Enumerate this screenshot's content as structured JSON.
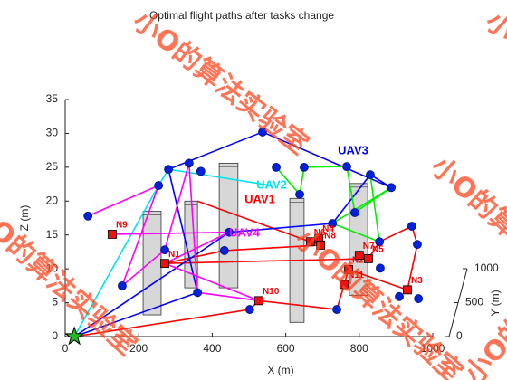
{
  "chart_data": {
    "type": "line3d",
    "title": "Optimal flight paths after tasks change",
    "xlabel": "X (m)",
    "ylabel": "Y (m)",
    "zlabel": "Z (m)",
    "xlim": [
      0,
      1000
    ],
    "ylim": [
      0,
      1000
    ],
    "zlim": [
      0,
      35
    ],
    "xticks": [
      0,
      200,
      400,
      600,
      800,
      1000
    ],
    "yticks": [
      0,
      500,
      1000
    ],
    "zticks": [
      0,
      5,
      10,
      15,
      20,
      25,
      30,
      35
    ],
    "watermark": "小O的算法实验室",
    "base": {
      "x": 25,
      "z": 0
    },
    "buildings": [
      {
        "x": [
          212,
          261
        ],
        "z": [
          3.2,
          18.5
        ]
      },
      {
        "x": [
          325,
          360
        ],
        "z": [
          7.2,
          20
        ]
      },
      {
        "x": [
          419,
          470
        ],
        "z": [
          7.2,
          25.6
        ]
      },
      {
        "x": [
          611,
          650
        ],
        "z": [
          2.1,
          20.4
        ]
      },
      {
        "x": [
          773,
          823
        ],
        "z": [
          6.1,
          22.6
        ]
      }
    ],
    "nodes": {
      "x": [
        62,
        155,
        281,
        254,
        337,
        369,
        537,
        574,
        650,
        766,
        887,
        788,
        727,
        638,
        855,
        943,
        958,
        857,
        909,
        961,
        739,
        502,
        360,
        271,
        433,
        446,
        830
      ],
      "z": [
        17.8,
        7.5,
        24.7,
        22.3,
        25.6,
        24.4,
        30.2,
        25.0,
        25.0,
        25.1,
        22.0,
        18.3,
        16.7,
        21.0,
        14.0,
        16.3,
        13.6,
        10.1,
        5.9,
        5.6,
        4.0,
        4.0,
        6.5,
        12.8,
        12.7,
        15.4,
        23.9
      ]
    },
    "targets": {
      "names": [
        "N1",
        "N2",
        "N3",
        "N4",
        "N5",
        "N6",
        "N7",
        "N8",
        "N9",
        "N10",
        "N11"
      ],
      "x": [
        271,
        771,
        931,
        690,
        825,
        667,
        800,
        695,
        128,
        527,
        759
      ],
      "z": [
        10.8,
        9.9,
        6.9,
        14.5,
        11.5,
        14.0,
        12.0,
        13.5,
        15.1,
        5.3,
        7.7
      ]
    },
    "series": [
      {
        "name": "UAV1",
        "color": "#ff0000",
        "x": [
          25,
          502,
          527,
          739,
          759,
          771,
          931,
          958,
          943,
          855,
          825,
          271,
          433,
          695,
          667,
          360
        ],
        "z": [
          0,
          4,
          5.3,
          4,
          7.7,
          9.9,
          6.9,
          13.6,
          16.3,
          14,
          11.5,
          10.8,
          12.7,
          13.5,
          14,
          20
        ]
      },
      {
        "name": "UAV2",
        "color": "#00e5ee",
        "x": [
          25,
          254,
          281,
          561
        ],
        "z": [
          0,
          22.3,
          24.7,
          22.3
        ]
      },
      {
        "name": "UAV3",
        "color": "#0000ff",
        "x": [
          25,
          360,
          281,
          537,
          887,
          830,
          727,
          446,
          25
        ],
        "z": [
          0,
          6.5,
          24.7,
          30.2,
          22,
          23.9,
          16.7,
          15.4,
          0
        ]
      },
      {
        "name": "UAV4",
        "color": "#ff00ff",
        "x": [
          62,
          254,
          155,
          271,
          337,
          360,
          527,
          271,
          446,
          128
        ],
        "z": [
          17.8,
          22.3,
          7.5,
          12.8,
          25.6,
          6.5,
          5.3,
          10.8,
          15.4,
          15.1
        ]
      },
      {
        "name": null,
        "color": "#00ee00",
        "x": [
          574,
          638,
          650,
          766,
          788,
          887,
          727,
          855,
          830
        ],
        "z": [
          25,
          21,
          25,
          25.1,
          18.3,
          22,
          16.7,
          14,
          23.9
        ]
      }
    ]
  }
}
